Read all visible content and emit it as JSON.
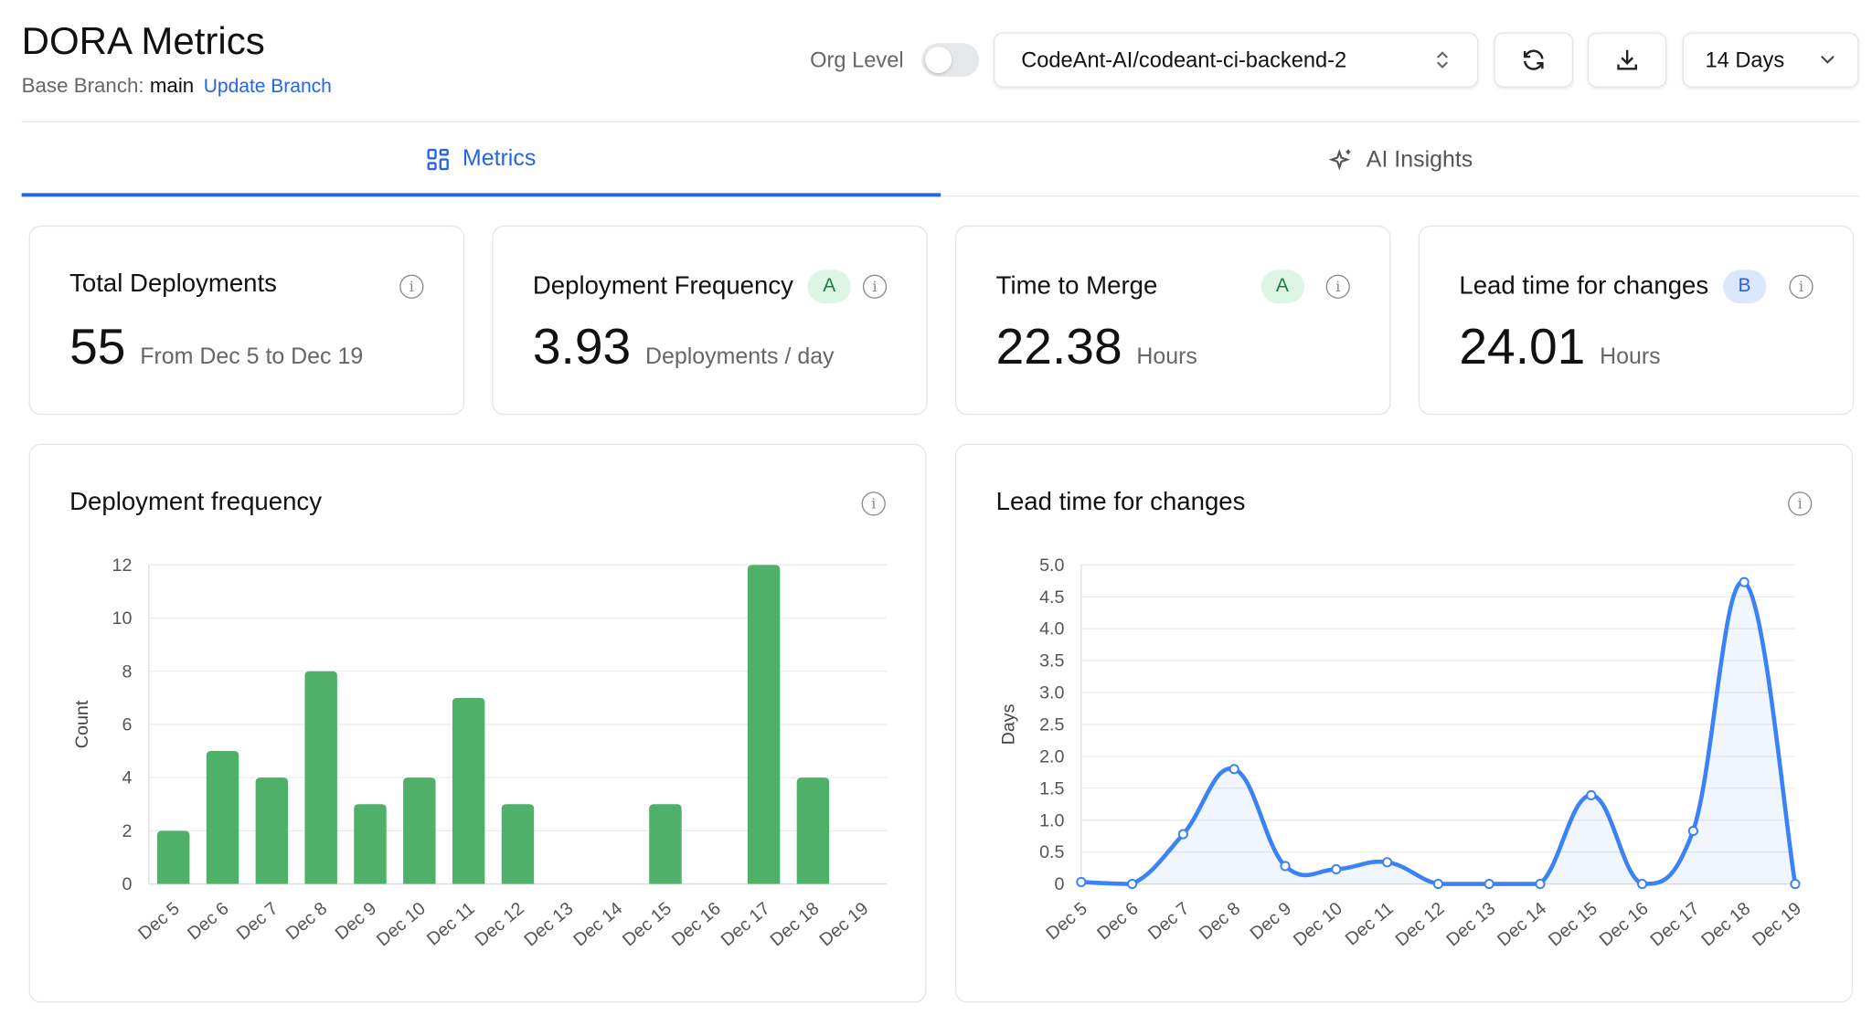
{
  "header": {
    "title": "DORA Metrics",
    "base_branch_label": "Base Branch:",
    "base_branch": "main",
    "update_branch": "Update Branch",
    "org_level": "Org Level",
    "repo": "CodeAnt-AI/codeant-ci-backend-2",
    "range": "14 Days"
  },
  "tabs": [
    {
      "label": "Metrics"
    },
    {
      "label": "AI Insights"
    }
  ],
  "metrics": [
    {
      "title": "Total Deployments",
      "value": "55",
      "unit": "From Dec 5 to Dec 19"
    },
    {
      "title": "Deployment Frequency",
      "grade": "A",
      "value": "3.93",
      "unit": "Deployments / day"
    },
    {
      "title": "Time to Merge",
      "grade": "A",
      "value": "22.38",
      "unit": "Hours"
    },
    {
      "title": "Lead time for changes",
      "grade": "B",
      "value": "24.01",
      "unit": "Hours"
    }
  ],
  "colors": {
    "accent": "#2563eb",
    "bar": "#4fb06a",
    "line": "#3b82f6"
  },
  "chart_data": [
    {
      "type": "bar",
      "title": "Deployment frequency",
      "ylabel": "Count",
      "ylim": [
        0,
        12
      ],
      "yticks": [
        0,
        2,
        4,
        6,
        8,
        10,
        12
      ],
      "categories": [
        "Dec 5",
        "Dec 6",
        "Dec 7",
        "Dec 8",
        "Dec 9",
        "Dec 10",
        "Dec 11",
        "Dec 12",
        "Dec 13",
        "Dec 14",
        "Dec 15",
        "Dec 16",
        "Dec 17",
        "Dec 18",
        "Dec 19"
      ],
      "values": [
        2,
        5,
        4,
        8,
        3,
        4,
        7,
        3,
        0,
        0,
        3,
        0,
        12,
        4,
        0
      ]
    },
    {
      "type": "line",
      "title": "Lead time for changes",
      "ylabel": "Days",
      "ylim": [
        0,
        5
      ],
      "yticks": [
        "0",
        "0.5",
        "1.0",
        "1.5",
        "2.0",
        "2.5",
        "3.0",
        "3.5",
        "4.0",
        "4.5",
        "5.0"
      ],
      "categories": [
        "Dec 5",
        "Dec 6",
        "Dec 7",
        "Dec 8",
        "Dec 9",
        "Dec 10",
        "Dec 11",
        "Dec 12",
        "Dec 13",
        "Dec 14",
        "Dec 15",
        "Dec 16",
        "Dec 17",
        "Dec 18",
        "Dec 19"
      ],
      "values": [
        0.03,
        0,
        0.78,
        1.8,
        0.28,
        0.23,
        0.34,
        0,
        0,
        0,
        1.39,
        0,
        0.83,
        4.73,
        0
      ]
    }
  ]
}
